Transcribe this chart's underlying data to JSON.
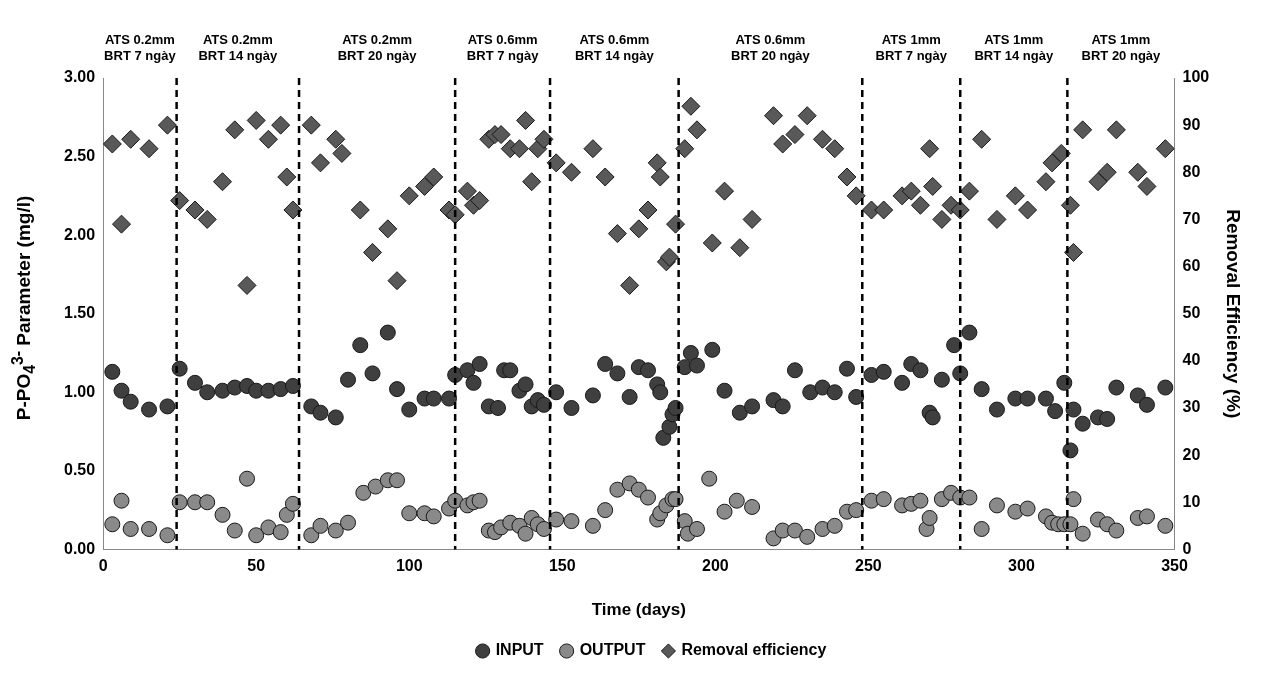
{
  "chart_data": {
    "type": "scatter",
    "xlabel": "Time (days)",
    "ylabel": "P-PO$_{4}$$^{3-}$ Parameter (mg/l)",
    "y2label": "Removal Efficiency (%)",
    "xlim": [
      0,
      350
    ],
    "xticks": [
      0,
      50,
      100,
      150,
      200,
      250,
      300,
      350
    ],
    "ylim": [
      0,
      3
    ],
    "yticks": [
      {
        "value": 0,
        "label": "0.00"
      },
      {
        "value": 0.5,
        "label": "0.50"
      },
      {
        "value": 1,
        "label": "1.00"
      },
      {
        "value": 1.5,
        "label": "1.50"
      },
      {
        "value": 2,
        "label": "2.00"
      },
      {
        "value": 2.5,
        "label": "2.50"
      },
      {
        "value": 3,
        "label": "3.00"
      }
    ],
    "y2lim": [
      0,
      100
    ],
    "y2ticks": [
      0,
      10,
      20,
      30,
      40,
      50,
      60,
      70,
      80,
      90,
      100
    ],
    "legend": "bottom",
    "series": [
      {
        "name": "INPUT",
        "color": "#3f3f3f",
        "marker": "circle",
        "x": [
          3,
          6,
          9,
          15,
          21,
          25,
          30,
          34,
          39,
          43,
          47,
          50,
          54,
          58,
          62,
          68,
          71,
          76,
          80,
          84,
          88,
          93,
          96,
          100,
          105,
          108,
          113,
          115,
          119,
          121,
          123,
          126,
          129,
          131,
          133,
          136,
          138,
          140,
          142,
          144,
          148,
          153,
          160,
          164,
          168,
          172,
          175,
          178,
          181,
          182,
          183,
          185,
          186,
          187,
          190,
          192,
          194,
          199,
          203,
          208,
          212,
          219,
          222,
          226,
          231,
          235,
          239,
          243,
          246,
          251,
          255,
          261,
          264,
          267,
          270,
          271,
          274,
          278,
          280,
          283,
          287,
          292,
          298,
          302,
          308,
          311,
          314,
          316,
          317,
          320,
          325,
          328,
          331,
          338,
          341,
          347
        ],
        "values": [
          1.13,
          1.01,
          0.94,
          0.89,
          0.91,
          1.15,
          1.06,
          1.0,
          1.01,
          1.03,
          1.04,
          1.01,
          1.01,
          1.02,
          1.04,
          0.91,
          0.87,
          0.84,
          1.08,
          1.3,
          1.12,
          1.38,
          1.02,
          0.89,
          0.96,
          0.96,
          0.96,
          1.11,
          1.14,
          1.06,
          1.18,
          0.91,
          0.9,
          1.14,
          1.14,
          1.01,
          1.05,
          0.91,
          0.95,
          0.92,
          1.0,
          0.9,
          0.98,
          1.18,
          1.12,
          0.97,
          1.16,
          1.14,
          1.05,
          1.0,
          0.71,
          0.78,
          0.86,
          0.9,
          1.16,
          1.25,
          1.17,
          1.27,
          1.01,
          0.87,
          0.91,
          0.95,
          0.91,
          1.14,
          1.0,
          1.03,
          1.0,
          1.15,
          0.97,
          1.11,
          1.13,
          1.06,
          1.18,
          1.14,
          0.87,
          0.84,
          1.08,
          1.3,
          1.12,
          1.38,
          1.02,
          0.89,
          0.96,
          0.96,
          0.96,
          0.88,
          1.06,
          0.63,
          0.89,
          0.8,
          0.84,
          0.83,
          1.03,
          0.98,
          0.92,
          1.03
        ]
      },
      {
        "name": "OUTPUT",
        "color": "#8a8a8a",
        "marker": "circle",
        "x": [
          3,
          6,
          9,
          15,
          21,
          25,
          30,
          34,
          39,
          43,
          47,
          50,
          54,
          58,
          60,
          62,
          68,
          71,
          76,
          80,
          85,
          89,
          93,
          96,
          100,
          105,
          108,
          113,
          115,
          119,
          121,
          123,
          126,
          128,
          130,
          133,
          136,
          138,
          140,
          142,
          144,
          148,
          153,
          160,
          164,
          168,
          172,
          175,
          178,
          181,
          182,
          184,
          186,
          187,
          190,
          191,
          194,
          198,
          203,
          207,
          212,
          219,
          222,
          226,
          230,
          235,
          239,
          243,
          246,
          251,
          255,
          261,
          264,
          267,
          269,
          270,
          274,
          277,
          280,
          283,
          287,
          292,
          298,
          302,
          308,
          310,
          312,
          314,
          316,
          317,
          320,
          325,
          328,
          331,
          338,
          341,
          347
        ],
        "values": [
          0.16,
          0.31,
          0.13,
          0.13,
          0.09,
          0.3,
          0.3,
          0.3,
          0.22,
          0.12,
          0.45,
          0.09,
          0.14,
          0.11,
          0.22,
          0.29,
          0.09,
          0.15,
          0.12,
          0.17,
          0.36,
          0.4,
          0.44,
          0.44,
          0.23,
          0.23,
          0.21,
          0.26,
          0.31,
          0.28,
          0.3,
          0.31,
          0.12,
          0.11,
          0.14,
          0.17,
          0.15,
          0.1,
          0.2,
          0.16,
          0.13,
          0.19,
          0.18,
          0.15,
          0.25,
          0.38,
          0.42,
          0.38,
          0.33,
          0.19,
          0.23,
          0.28,
          0.32,
          0.32,
          0.18,
          0.1,
          0.13,
          0.45,
          0.24,
          0.31,
          0.27,
          0.07,
          0.12,
          0.12,
          0.08,
          0.13,
          0.15,
          0.24,
          0.25,
          0.31,
          0.32,
          0.28,
          0.29,
          0.31,
          0.13,
          0.2,
          0.32,
          0.36,
          0.33,
          0.33,
          0.13,
          0.28,
          0.24,
          0.26,
          0.21,
          0.17,
          0.16,
          0.16,
          0.16,
          0.32,
          0.1,
          0.19,
          0.16,
          0.12,
          0.2,
          0.21,
          0.15
        ]
      },
      {
        "name": "Removal efficiency",
        "color": "#595959",
        "marker": "diamond",
        "axis": "y2",
        "x": [
          3,
          6,
          9,
          15,
          21,
          25,
          30,
          34,
          39,
          43,
          47,
          50,
          54,
          58,
          60,
          62,
          68,
          71,
          76,
          78,
          84,
          88,
          93,
          96,
          100,
          105,
          108,
          113,
          115,
          119,
          121,
          123,
          126,
          128,
          130,
          133,
          136,
          138,
          140,
          142,
          144,
          148,
          153,
          160,
          164,
          168,
          172,
          175,
          178,
          181,
          182,
          184,
          185,
          187,
          190,
          192,
          194,
          199,
          203,
          208,
          212,
          219,
          222,
          226,
          230,
          235,
          239,
          243,
          246,
          251,
          255,
          261,
          264,
          267,
          270,
          271,
          274,
          277,
          280,
          283,
          287,
          292,
          298,
          302,
          308,
          310,
          313,
          316,
          317,
          320,
          325,
          328,
          331,
          338,
          341,
          347
        ],
        "values": [
          86,
          69,
          87,
          85,
          90,
          74,
          72,
          70,
          78,
          89,
          56,
          91,
          87,
          90,
          79,
          72,
          90,
          82,
          87,
          84,
          72,
          63,
          68,
          57,
          75,
          77,
          79,
          72,
          71,
          76,
          73,
          74,
          87,
          88,
          88,
          85,
          85,
          91,
          78,
          85,
          87,
          82,
          80,
          85,
          79,
          67,
          56,
          68,
          72,
          82,
          79,
          61,
          62,
          69,
          85,
          94,
          89,
          65,
          76,
          64,
          70,
          92,
          86,
          88,
          92,
          87,
          85,
          79,
          75,
          72,
          72,
          75,
          76,
          73,
          85,
          77,
          70,
          73,
          72,
          76,
          87,
          70,
          75,
          72,
          78,
          82,
          84,
          73,
          63,
          89,
          78,
          80,
          89,
          80,
          77,
          85
        ]
      }
    ],
    "ref_lines": [
      {
        "axis": "x",
        "value": 24,
        "line_style": "dashed"
      },
      {
        "axis": "x",
        "value": 64,
        "line_style": "dashed"
      },
      {
        "axis": "x",
        "value": 115,
        "line_style": "dashed"
      },
      {
        "axis": "x",
        "value": 146,
        "line_style": "dashed"
      },
      {
        "axis": "x",
        "value": 188,
        "line_style": "dashed"
      },
      {
        "axis": "x",
        "value": 248,
        "line_style": "dashed"
      },
      {
        "axis": "x",
        "value": 280,
        "line_style": "dashed"
      },
      {
        "axis": "x",
        "value": 315,
        "line_style": "dashed"
      }
    ],
    "annotations": [
      "ATS 0.2mm\nBRT 7 ngày",
      "ATS 0.2mm\nBRT 14 ngày",
      "ATS 0.2mm\nBRT 20 ngày",
      "ATS 0.6mm\nBRT 7 ngày",
      "ATS 0.6mm\nBRT 14 ngày",
      "ATS 0.6mm\nBRT 20 ngày",
      "ATS 1mm\nBRT 7 ngày",
      "ATS 1mm\nBRT 14 ngày",
      "ATS 1mm\nBRT 20 ngày"
    ]
  }
}
